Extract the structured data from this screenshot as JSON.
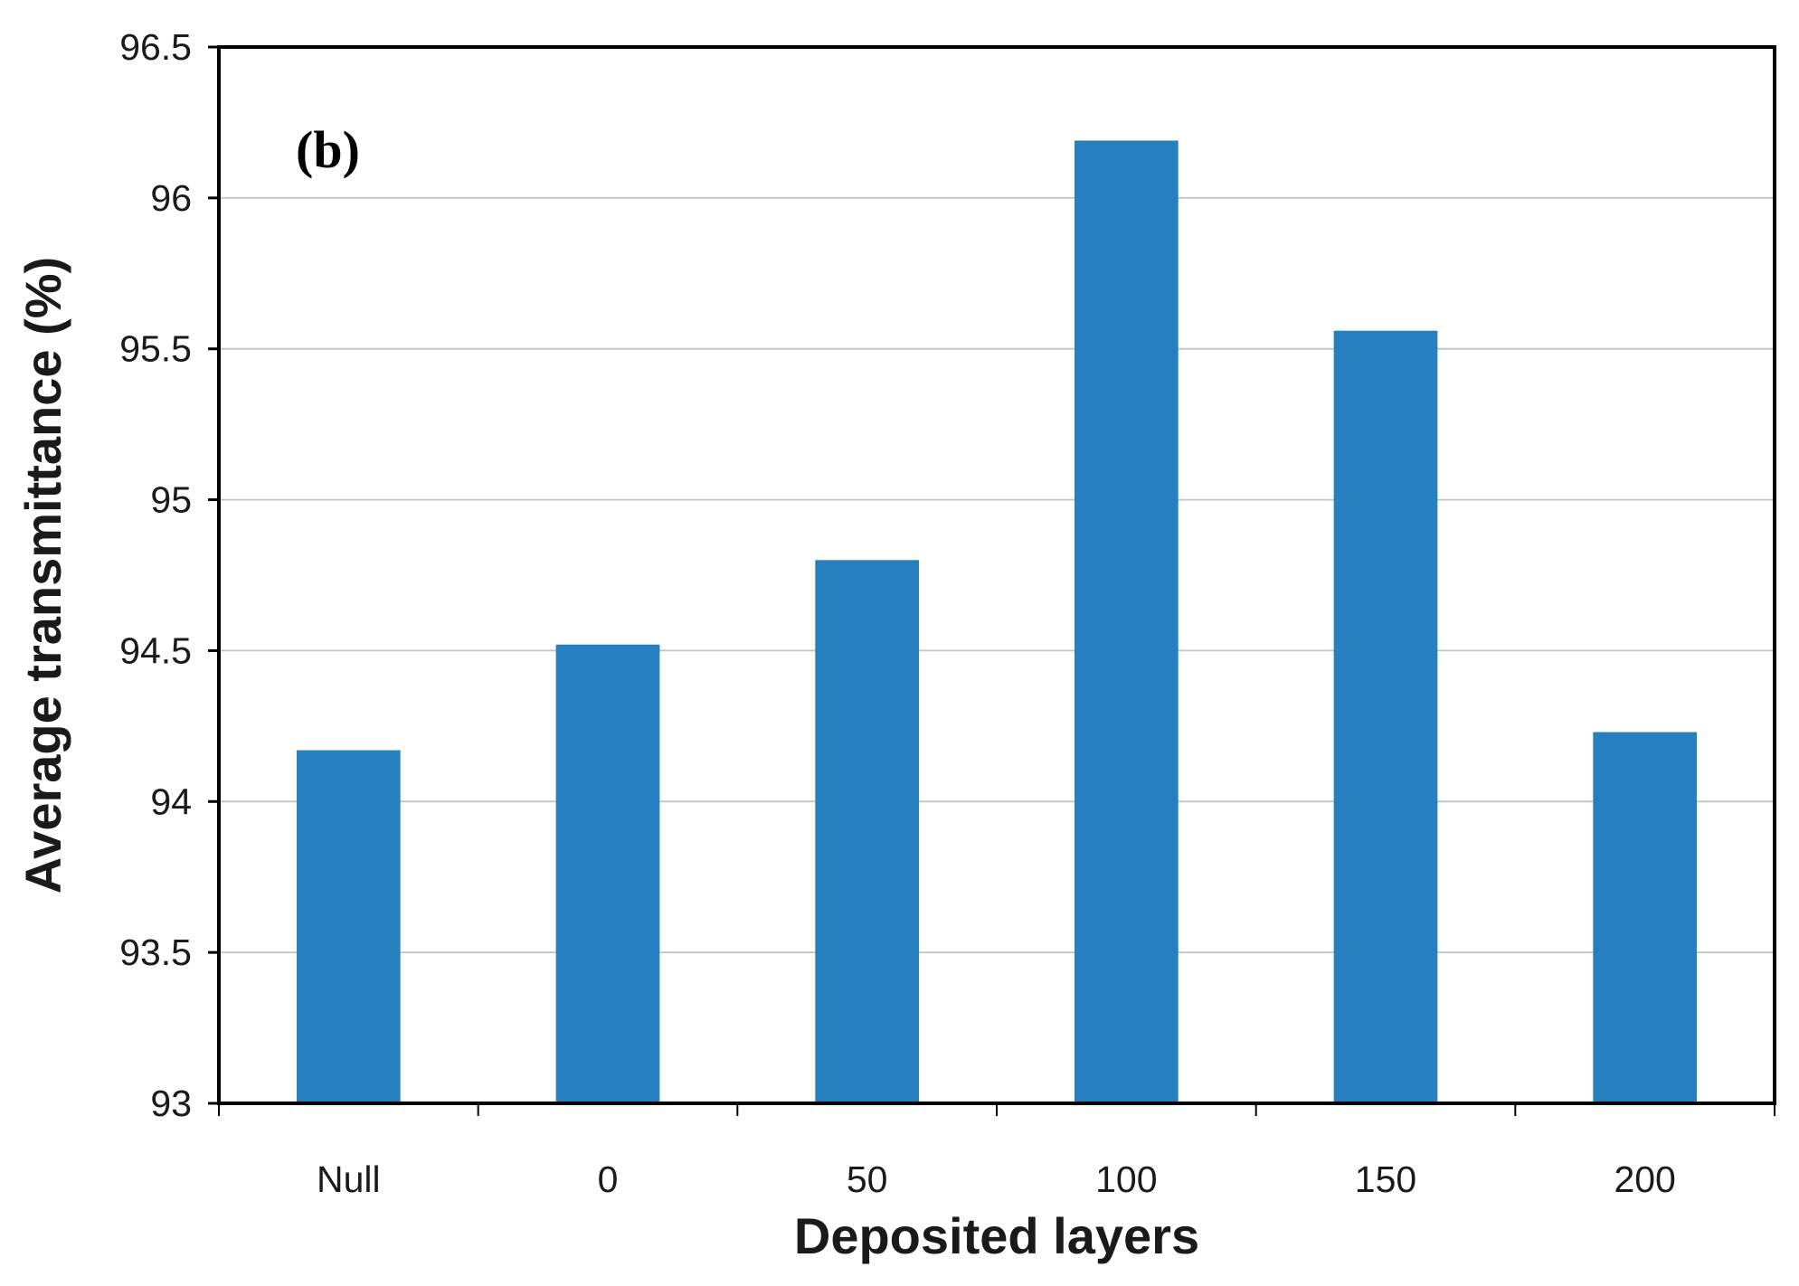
{
  "chart_data": {
    "type": "bar",
    "panel_label": "(b)",
    "categories": [
      "Null",
      "0",
      "50",
      "100",
      "150",
      "200"
    ],
    "values": [
      94.17,
      94.52,
      94.8,
      96.19,
      95.56,
      94.23
    ],
    "xlabel": "Deposited layers",
    "ylabel": "Average transmittance (%)",
    "ylim": [
      93,
      96.5
    ],
    "yticks": [
      93,
      93.5,
      94,
      94.5,
      95,
      95.5,
      96,
      96.5
    ],
    "ytick_labels": [
      "93",
      "93.5",
      "94",
      "94.5",
      "95",
      "95.5",
      "96",
      "96.5"
    ],
    "grid": true,
    "legend": "none",
    "colors": {
      "bar": "#2680c0",
      "grid": "#c6c6c6",
      "frame": "#000000"
    }
  }
}
